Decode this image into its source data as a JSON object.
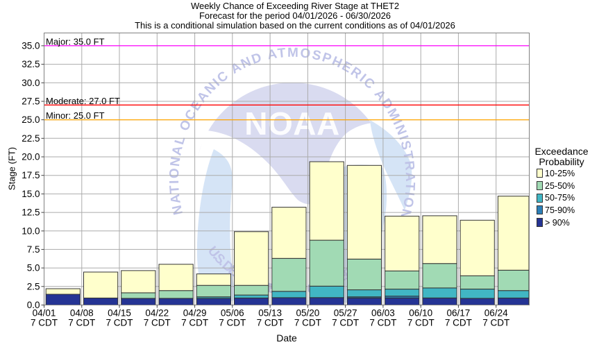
{
  "titles": {
    "line1": "Weekly Chance of Exceeding River Stage at THET2",
    "line2": "Forecast for the period 04/01/2026 - 06/30/2026",
    "line3": "This is a conditional simulation based on the current conditions as of 04/01/2026"
  },
  "axes": {
    "y_label": "Stage (FT)",
    "x_label": "Date",
    "x_tick_sublabel": "7 CDT"
  },
  "legend": {
    "title_line1": "Exceedance",
    "title_line2": "Probability",
    "items": [
      {
        "label": "10-25%",
        "color": "#ffffcc"
      },
      {
        "label": "25-50%",
        "color": "#a1dab4"
      },
      {
        "label": "50-75%",
        "color": "#41b6c4"
      },
      {
        "label": "75-90%",
        "color": "#2c7fb8"
      },
      {
        "label": "> 90%",
        "color": "#253494"
      }
    ]
  },
  "watermark": {
    "acronym": "NOAA",
    "top_text": "NATIONAL OCEANIC AND ATMOSPHERIC ADMINISTRATION",
    "bottom_text": "U.S. DEPARTMENT OF COMMERCE"
  },
  "chart_data": {
    "type": "bar",
    "stacked": true,
    "title": "Weekly Chance of Exceeding River Stage at THET2",
    "xlabel": "Date",
    "ylabel": "Stage (FT)",
    "ylim": [
      0,
      36.8
    ],
    "yticks": [
      0.0,
      2.5,
      5.0,
      7.5,
      10.0,
      12.5,
      15.0,
      17.5,
      20.0,
      22.5,
      25.0,
      27.5,
      30.0,
      32.5,
      35.0
    ],
    "grid": true,
    "legend_position": "right",
    "categories": [
      "04/01",
      "04/08",
      "04/15",
      "04/22",
      "04/29",
      "05/06",
      "05/13",
      "05/20",
      "05/27",
      "06/03",
      "06/10",
      "06/17",
      "06/24"
    ],
    "values_are": "cumulative_stage_tops_ft",
    "series": [
      {
        "name": "> 90%",
        "color": "#253494",
        "values": [
          1.45,
          0.95,
          0.9,
          0.9,
          0.9,
          0.95,
          1.0,
          1.0,
          0.95,
          0.95,
          0.95,
          0.9,
          0.95
        ]
      },
      {
        "name": "75-90%",
        "color": "#2c7fb8",
        "values": [
          null,
          null,
          null,
          null,
          null,
          null,
          null,
          null,
          1.1,
          1.2,
          null,
          null,
          null
        ]
      },
      {
        "name": "50-75%",
        "color": "#41b6c4",
        "values": [
          null,
          null,
          null,
          null,
          1.1,
          1.35,
          1.85,
          2.55,
          2.05,
          2.15,
          2.3,
          2.15,
          1.95
        ]
      },
      {
        "name": "25-50%",
        "color": "#a1dab4",
        "values": [
          null,
          null,
          1.65,
          1.95,
          2.65,
          2.65,
          6.3,
          8.75,
          6.2,
          4.6,
          5.6,
          3.95,
          4.7
        ]
      },
      {
        "name": "10-25%",
        "color": "#ffffcc",
        "values": [
          2.2,
          4.45,
          4.65,
          5.5,
          4.2,
          9.9,
          13.2,
          19.35,
          18.85,
          12.0,
          12.05,
          11.45,
          14.7
        ]
      }
    ],
    "reference_lines": [
      {
        "label": "Major: 35.0 FT",
        "value": 35.0,
        "color": "#ff00ff"
      },
      {
        "label": "Moderate: 27.0 FT",
        "value": 27.0,
        "color": "#ff0000"
      },
      {
        "label": "Minor: 25.0 FT",
        "value": 25.0,
        "color": "#ffa500"
      }
    ]
  }
}
